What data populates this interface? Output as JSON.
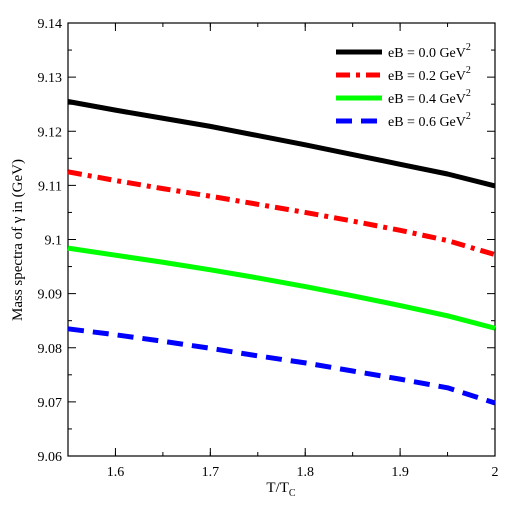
{
  "chart_data": {
    "type": "line",
    "title": "",
    "xlabel": "T/T",
    "xlabel_sub": "C",
    "ylabel": "Mass spectra of γ in (GeV)",
    "xlim": [
      1.55,
      2.0
    ],
    "ylim": [
      9.06,
      9.14
    ],
    "x_ticks": [
      1.6,
      1.7,
      1.8,
      1.9,
      2.0
    ],
    "x_tick_labels": [
      "1.6",
      "1.7",
      "1.8",
      "1.9",
      "2"
    ],
    "y_ticks": [
      9.06,
      9.07,
      9.08,
      9.09,
      9.1,
      9.11,
      9.12,
      9.13,
      9.14
    ],
    "y_tick_labels": [
      "9.06",
      "9.07",
      "9.08",
      "9.09",
      "9.1",
      "9.11",
      "9.12",
      "9.13",
      "9.14"
    ],
    "grid": false,
    "legend_position": "top-right",
    "x": [
      1.55,
      1.6,
      1.65,
      1.7,
      1.75,
      1.8,
      1.85,
      1.9,
      1.95,
      2.0
    ],
    "series": [
      {
        "name": "eB = 0.0 GeV",
        "name_sup": "2",
        "color": "#000000",
        "dash": "solid",
        "values": [
          9.1255,
          9.1239,
          9.1224,
          9.1209,
          9.1192,
          9.1175,
          9.1157,
          9.1139,
          9.1121,
          9.1099
        ]
      },
      {
        "name": "eB = 0.2 GeV",
        "name_sup": "2",
        "color": "#ff0000",
        "dash": "dash-dot",
        "values": [
          9.1125,
          9.1109,
          9.1094,
          9.108,
          9.1065,
          9.105,
          9.1034,
          9.1017,
          9.0998,
          9.0972
        ]
      },
      {
        "name": "eB = 0.4 GeV",
        "name_sup": "2",
        "color": "#00ff00",
        "dash": "solid",
        "values": [
          9.0984,
          9.0971,
          9.0958,
          9.0944,
          9.0929,
          9.0913,
          9.0896,
          9.0878,
          9.0859,
          9.0836
        ]
      },
      {
        "name": "eB = 0.6 GeV",
        "name_sup": "2",
        "color": "#0000ff",
        "dash": "dashed",
        "values": [
          9.0835,
          9.0824,
          9.0812,
          9.0799,
          9.0785,
          9.0772,
          9.0757,
          9.0742,
          9.0726,
          9.0698
        ]
      }
    ]
  }
}
